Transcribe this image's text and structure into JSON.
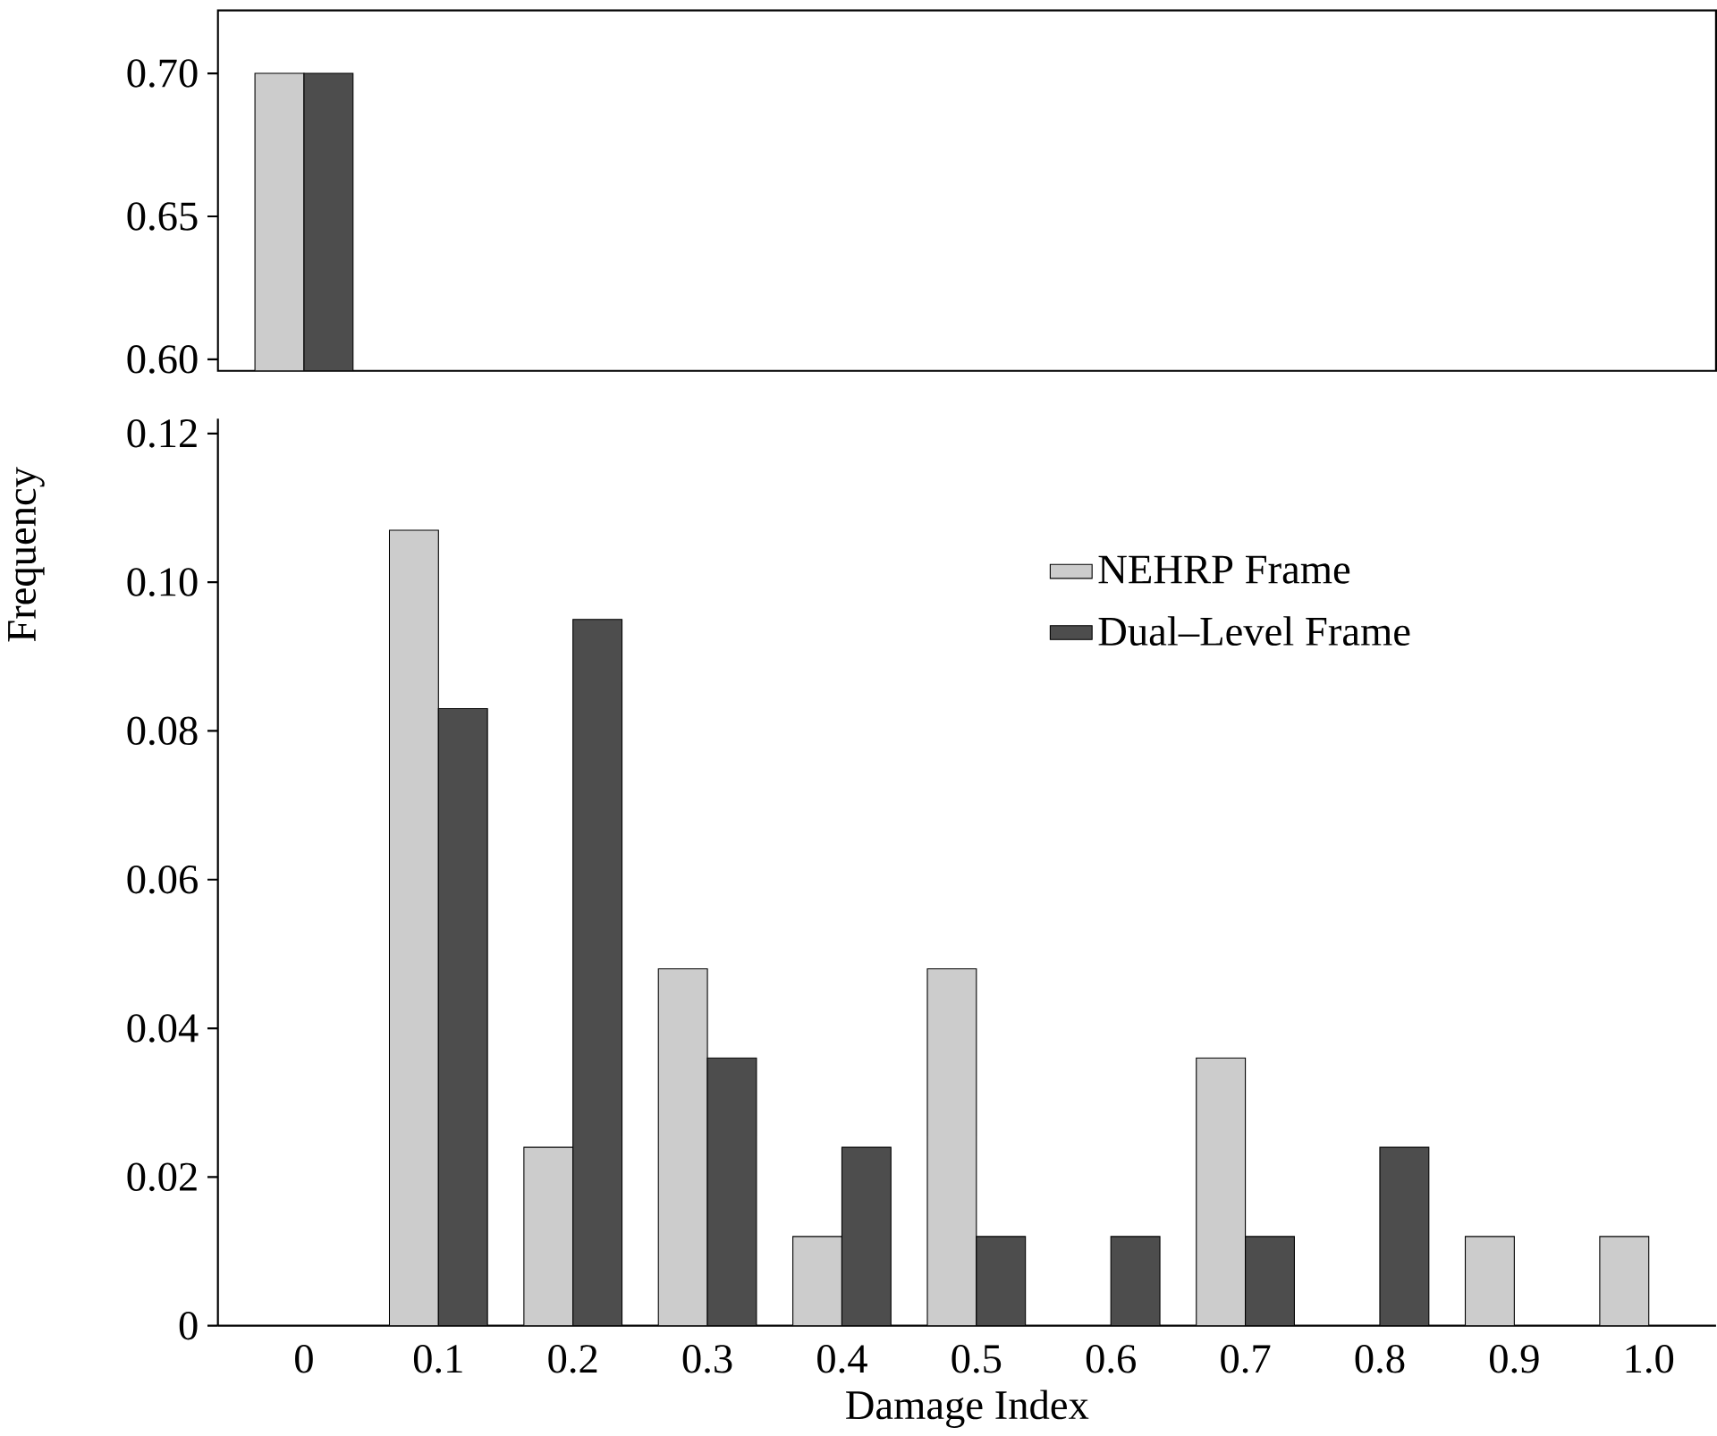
{
  "chart_data": [
    {
      "type": "bar",
      "categories": [
        "0",
        "0.1",
        "0.2",
        "0.3",
        "0.4",
        "0.5",
        "0.6",
        "0.7",
        "0.8",
        "0.9",
        "1.0"
      ],
      "series": [
        {
          "color": "#cccccc",
          "values": [
            0.7,
            null,
            null,
            null,
            null,
            null,
            null,
            null,
            null,
            null,
            null
          ]
        },
        {
          "color": "#4d4d4d",
          "values": [
            0.7,
            null,
            null,
            null,
            null,
            null,
            null,
            null,
            null,
            null,
            null
          ]
        }
      ],
      "ylim": [
        0.596,
        0.722
      ],
      "yticks": [
        {
          "value": 0.6,
          "label": "0.60"
        },
        {
          "value": 0.65,
          "label": "0.65"
        },
        {
          "value": 0.7,
          "label": "0.70"
        }
      ],
      "tick_labels": "y",
      "grid": false,
      "legend": false
    },
    {
      "type": "bar",
      "xlabel": "Damage Index",
      "ylabel": "Frequency",
      "categories": [
        "0",
        "0.1",
        "0.2",
        "0.3",
        "0.4",
        "0.5",
        "0.6",
        "0.7",
        "0.8",
        "0.9",
        "1.0"
      ],
      "series": [
        {
          "name": "NEHRP Frame",
          "color": "#cccccc",
          "values": [
            null,
            0.107,
            0.024,
            0.048,
            0.012,
            0.048,
            0,
            0.036,
            0,
            0.012,
            0.012
          ]
        },
        {
          "name": "Dual–Level Frame",
          "color": "#4d4d4d",
          "values": [
            null,
            0.083,
            0.095,
            0.036,
            0.024,
            0.012,
            0.012,
            0.012,
            0.024,
            0,
            0
          ]
        }
      ],
      "ylim": [
        0,
        0.122
      ],
      "yticks": [
        0,
        {
          "value": 0.02,
          "label": "0.02"
        },
        {
          "value": 0.04,
          "label": "0.04"
        },
        {
          "value": 0.06,
          "label": "0.06"
        },
        {
          "value": 0.08,
          "label": "0.08"
        },
        {
          "value": 0.1,
          "label": "0.10"
        },
        {
          "value": 0.12,
          "label": "0.12"
        }
      ],
      "grid": false,
      "legend": "top right"
    }
  ]
}
